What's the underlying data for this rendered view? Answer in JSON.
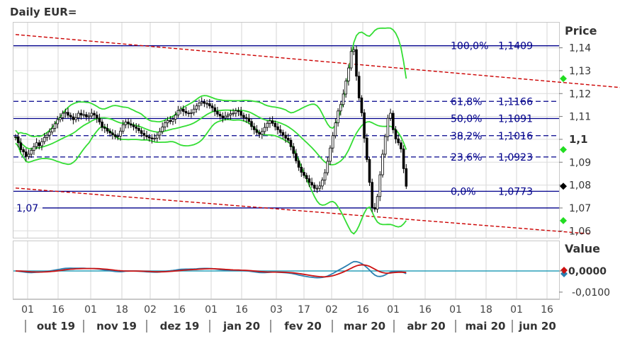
{
  "chart_data": [
    {
      "type": "line",
      "title": "Daily EUR=",
      "ylabel": "Price",
      "ylim": [
        1.057,
        1.151
      ],
      "y_ticks": [
        {
          "value": 1.14,
          "label": "1,14"
        },
        {
          "value": 1.13,
          "label": "1,13"
        },
        {
          "value": 1.12,
          "label": "1,12"
        },
        {
          "value": 1.11,
          "label": "1,11"
        },
        {
          "value": 1.1,
          "label": "1,1"
        },
        {
          "value": 1.09,
          "label": "1,09"
        },
        {
          "value": 1.08,
          "label": "1,08"
        },
        {
          "value": 1.07,
          "label": "1,07"
        },
        {
          "value": 1.06,
          "label": "1,06"
        }
      ],
      "x_ticks": [
        "01",
        "16",
        "01",
        "18",
        "02",
        "16",
        "01",
        "16",
        "03",
        "17",
        "02",
        "16",
        "01",
        "16",
        "01",
        "18",
        "01",
        "16"
      ],
      "months": [
        "out 19",
        "nov 19",
        "dez 19",
        "jan 20",
        "fev 20",
        "mar 20",
        "abr 20",
        "mai 20",
        "jun 20"
      ],
      "fibonacci_levels": [
        {
          "label": "100,0%",
          "value": 1.1409,
          "value_label": "1,1409",
          "style": "solid"
        },
        {
          "label": "61,8%",
          "value": 1.1166,
          "value_label": "1,1166",
          "style": "dashed"
        },
        {
          "label": "50,0%",
          "value": 1.1091,
          "value_label": "1,1091",
          "style": "solid"
        },
        {
          "label": "38,2%",
          "value": 1.1016,
          "value_label": "1,1016",
          "style": "dashed"
        },
        {
          "label": "23,6%",
          "value": 1.0923,
          "value_label": "1,0923",
          "style": "dashed"
        },
        {
          "label": "0,0%",
          "value": 1.0773,
          "value_label": "1,0773",
          "style": "solid"
        }
      ],
      "support_line": {
        "value": 1.07,
        "label": "1,07"
      },
      "channel": {
        "upper": [
          {
            "x": 0,
            "y": 1.1458
          },
          {
            "x": 252,
            "y": 1.1205
          }
        ],
        "lower": [
          {
            "x": 0,
            "y": 1.0787
          },
          {
            "x": 219,
            "y": 1.0587
          }
        ]
      },
      "price_close": [
        1.1011,
        1.0985,
        1.0955,
        1.0945,
        1.0925,
        1.0935,
        1.0952,
        1.0968,
        1.0985,
        1.0972,
        1.099,
        1.1008,
        1.1018,
        1.1032,
        1.1048,
        1.1068,
        1.1086,
        1.1094,
        1.1114,
        1.1118,
        1.1105,
        1.1098,
        1.1086,
        1.1094,
        1.1114,
        1.1106,
        1.1108,
        1.1098,
        1.1102,
        1.1114,
        1.1106,
        1.1092,
        1.1076,
        1.1052,
        1.1048,
        1.1036,
        1.1028,
        1.102,
        1.1012,
        1.1014,
        1.1036,
        1.1064,
        1.1076,
        1.1068,
        1.1062,
        1.1055,
        1.1048,
        1.1038,
        1.1026,
        1.1017,
        1.1011,
        1.1006,
        1.1002,
        1.1005,
        1.1018,
        1.1034,
        1.1054,
        1.1072,
        1.1082,
        1.1078,
        1.1088,
        1.1106,
        1.1126,
        1.1132,
        1.1122,
        1.1115,
        1.1114,
        1.1116,
        1.1132,
        1.1146,
        1.1158,
        1.1164,
        1.1157,
        1.1156,
        1.1146,
        1.1138,
        1.1122,
        1.111,
        1.1102,
        1.1094,
        1.1101,
        1.1106,
        1.1112,
        1.1114,
        1.1125,
        1.1122,
        1.1105,
        1.1095,
        1.1092,
        1.1078,
        1.1056,
        1.1042,
        1.103,
        1.1022,
        1.1034,
        1.1052,
        1.107,
        1.1081,
        1.107,
        1.1055,
        1.1042,
        1.103,
        1.1018,
        1.1005,
        1.0996,
        1.0968,
        1.0938,
        1.0906,
        1.0878,
        1.0856,
        1.0842,
        1.0828,
        1.0812,
        1.08,
        1.0786,
        1.0786,
        1.0796,
        1.0822,
        1.0854,
        1.0904,
        1.0962,
        1.1016,
        1.1072,
        1.1124,
        1.1152,
        1.1198,
        1.1255,
        1.1312,
        1.1384,
        1.1392,
        1.1276,
        1.1181,
        1.1116,
        1.1005,
        1.0912,
        1.0812,
        1.0702,
        1.0695,
        1.075,
        1.0845,
        1.0935,
        1.1012,
        1.1092,
        1.1114,
        1.1042,
        1.1002,
        1.0985,
        1.0958,
        1.0872,
        1.0795
      ]
    },
    {
      "type": "line",
      "ylabel": "Value",
      "y_ticks": [
        {
          "value": 0.0,
          "label": "0,0000"
        },
        {
          "value": -0.01,
          "label": "-0,0100"
        }
      ]
    }
  ],
  "colors": {
    "fib_line": "#00008b",
    "channel": "#cc0000",
    "envelope": "#33dd33",
    "price": "#000000",
    "osc_blue": "#2a7fb0",
    "osc_red": "#cc1111",
    "zero_line": "#2a9fb8"
  }
}
